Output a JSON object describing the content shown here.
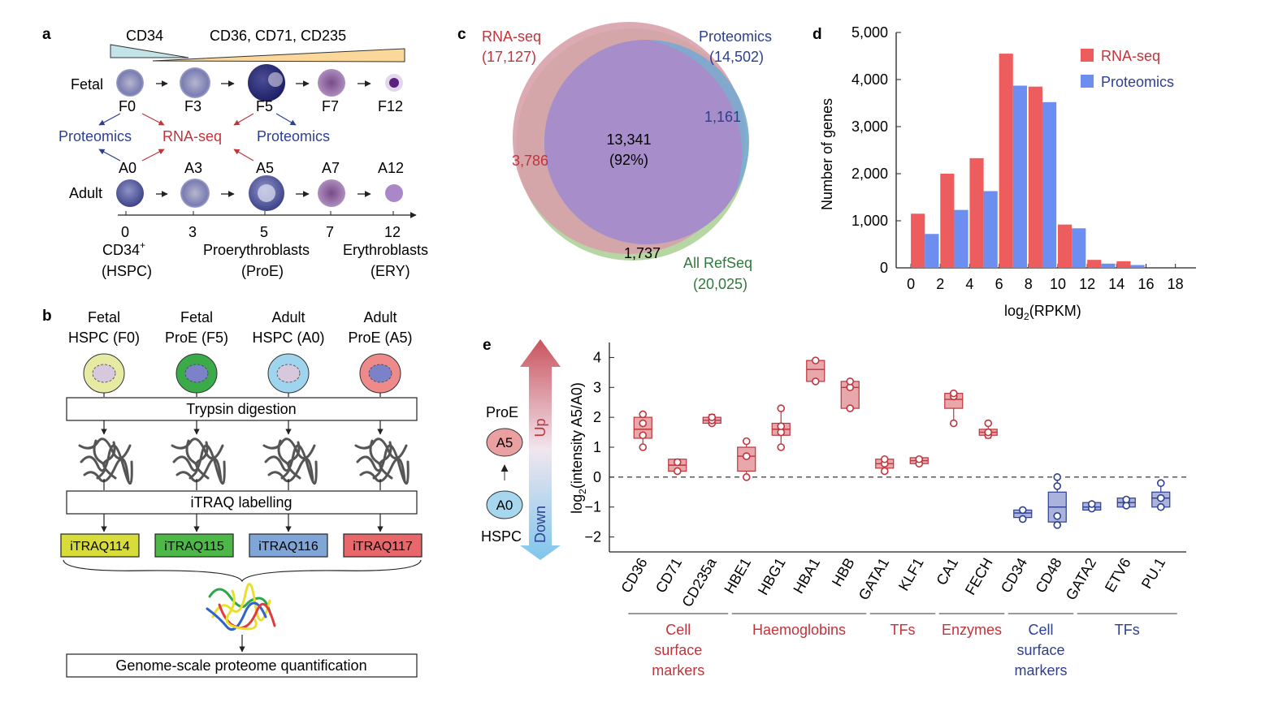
{
  "panel_a": {
    "label": "a",
    "marker_left": "CD34",
    "marker_right": "CD36, CD71, CD235",
    "fetal_label": "Fetal",
    "adult_label": "Adult",
    "fetal_cells": [
      "F0",
      "F3",
      "F5",
      "F7",
      "F12"
    ],
    "adult_cells": [
      "A0",
      "A3",
      "A5",
      "A7",
      "A12"
    ],
    "proteomics_left": "Proteomics",
    "rnaseq": "RNA-seq",
    "proteomics_right": "Proteomics",
    "axis_ticks": [
      "0",
      "3",
      "5",
      "7",
      "12"
    ],
    "stage_hspc_line1": "CD34",
    "stage_hspc_sup": "+",
    "stage_hspc_line2": "(HSPC)",
    "stage_proe_line1": "Proerythroblasts",
    "stage_proe_line2": "(ProE)",
    "stage_ery_line1": "Erythroblasts",
    "stage_ery_line2": "(ERY)"
  },
  "panel_b": {
    "label": "b",
    "samples": [
      {
        "line1": "Fetal",
        "line2": "HSPC (F0)",
        "fill": "#e6eaa2",
        "nucleus": "#d8c8de"
      },
      {
        "line1": "Fetal",
        "line2": "ProE (F5)",
        "fill": "#3bab4a",
        "nucleus": "#7b82c8"
      },
      {
        "line1": "Adult",
        "line2": "HSPC (A0)",
        "fill": "#9fd4ee",
        "nucleus": "#d8c8de"
      },
      {
        "line1": "Adult",
        "line2": "ProE (A5)",
        "fill": "#ef8a8a",
        "nucleus": "#7b82c8"
      }
    ],
    "step1": "Trypsin digestion",
    "step2": "iTRAQ labelling",
    "tags": [
      {
        "label": "iTRAQ114",
        "color": "#d8dc3a"
      },
      {
        "label": "iTRAQ115",
        "color": "#4db847"
      },
      {
        "label": "iTRAQ116",
        "color": "#80a6d8"
      },
      {
        "label": "iTRAQ117",
        "color": "#e8676a"
      }
    ],
    "step3": "Genome-scale proteome quantification"
  },
  "panel_c": {
    "label": "c",
    "rnaseq_label": "RNA-seq",
    "rnaseq_count": "(17,127)",
    "proteomics_label": "Proteomics",
    "proteomics_count": "(14,502)",
    "overlap_value": "13,341",
    "overlap_pct": "(92%)",
    "rna_only": "3,786",
    "prot_only": "1,161",
    "refseq_only": "1,737",
    "refseq_label": "All RefSeq",
    "refseq_count": "(20,025)"
  },
  "chart_data": [
    {
      "type": "bar",
      "panel": "d",
      "xlabel": "log2(RPKM)",
      "xlabel_main": "log",
      "xlabel_sub": "2",
      "xlabel_tail": "(RPKM)",
      "ylabel": "Number of genes",
      "ylim": [
        0,
        5000
      ],
      "yticks": [
        "0",
        "1,000",
        "2,000",
        "3,000",
        "4,000",
        "5,000"
      ],
      "xticks": [
        "0",
        "2",
        "4",
        "6",
        "8",
        "10",
        "12",
        "14",
        "16",
        "18"
      ],
      "bin_starts": [
        0,
        2,
        4,
        6,
        8,
        10,
        12,
        14
      ],
      "series": [
        {
          "name": "RNA-seq",
          "color": "#ee5d5d",
          "values": [
            1150,
            2000,
            2330,
            4550,
            3850,
            920,
            170,
            140
          ]
        },
        {
          "name": "Proteomics",
          "color": "#6b8ef0",
          "values": [
            720,
            1230,
            1630,
            3870,
            3520,
            840,
            90,
            60
          ]
        }
      ],
      "legend": "top-right"
    },
    {
      "type": "box",
      "panel": "e",
      "ylabel": "log2(intensity A5/A0)",
      "ylabel_main": "log",
      "ylabel_sub": "2",
      "ylabel_tail": "(intensity A5/A0)",
      "ylim": [
        -2.5,
        4.5
      ],
      "yticks": [
        "−2",
        "−1",
        "0",
        "1",
        "2",
        "3",
        "4"
      ],
      "categories": [
        "CD36",
        "CD71",
        "CD235a",
        "HBE1",
        "HBG1",
        "HBA1",
        "HBB",
        "GATA1",
        "KLF1",
        "CA1",
        "FECH",
        "CD34",
        "CD48",
        "GATA2",
        "ETV6",
        "PU.1"
      ],
      "boxes": [
        {
          "min": 1.0,
          "q1": 1.3,
          "median": 1.6,
          "q3": 2.0,
          "max": 2.1,
          "points": [
            1.0,
            1.4,
            1.8,
            2.1
          ],
          "group": "up"
        },
        {
          "min": 0.2,
          "q1": 0.2,
          "median": 0.4,
          "q3": 0.6,
          "max": 0.6,
          "points": [
            0.2,
            0.5
          ],
          "group": "up"
        },
        {
          "min": 1.8,
          "q1": 1.8,
          "median": 1.9,
          "q3": 2.0,
          "max": 2.1,
          "points": [
            1.8,
            1.9,
            2.0
          ],
          "group": "up"
        },
        {
          "min": 0.0,
          "q1": 0.2,
          "median": 0.7,
          "q3": 1.0,
          "max": 1.2,
          "points": [
            0.0,
            0.7,
            1.2
          ],
          "group": "up"
        },
        {
          "min": 1.0,
          "q1": 1.4,
          "median": 1.6,
          "q3": 1.8,
          "max": 2.3,
          "points": [
            1.0,
            1.5,
            1.7,
            2.3
          ],
          "group": "up"
        },
        {
          "min": 3.2,
          "q1": 3.2,
          "median": 3.6,
          "q3": 3.9,
          "max": 3.9,
          "points": [
            3.2,
            3.9
          ],
          "group": "up"
        },
        {
          "min": 2.3,
          "q1": 2.3,
          "median": 3.0,
          "q3": 3.2,
          "max": 3.2,
          "points": [
            2.3,
            3.0,
            3.2
          ],
          "group": "up"
        },
        {
          "min": 0.2,
          "q1": 0.3,
          "median": 0.45,
          "q3": 0.6,
          "max": 0.6,
          "points": [
            0.2,
            0.45,
            0.6
          ],
          "group": "up"
        },
        {
          "min": 0.4,
          "q1": 0.45,
          "median": 0.55,
          "q3": 0.65,
          "max": 0.65,
          "points": [
            0.45,
            0.6
          ],
          "group": "up"
        },
        {
          "min": 1.8,
          "q1": 2.3,
          "median": 2.6,
          "q3": 2.8,
          "max": 2.8,
          "points": [
            1.8,
            2.7,
            2.8
          ],
          "group": "up"
        },
        {
          "min": 1.3,
          "q1": 1.4,
          "median": 1.5,
          "q3": 1.6,
          "max": 1.8,
          "points": [
            1.4,
            1.5,
            1.8
          ],
          "group": "up"
        },
        {
          "min": -1.4,
          "q1": -1.35,
          "median": -1.2,
          "q3": -1.1,
          "max": -1.1,
          "points": [
            -1.4,
            -1.1
          ],
          "group": "down"
        },
        {
          "min": -1.6,
          "q1": -1.5,
          "median": -1.0,
          "q3": -0.5,
          "max": 0.0,
          "points": [
            -1.6,
            -1.3,
            -0.3,
            0.0
          ],
          "group": "down"
        },
        {
          "min": -1.1,
          "q1": -1.1,
          "median": -1.0,
          "q3": -0.85,
          "max": -0.85,
          "points": [
            -1.05,
            -0.9
          ],
          "group": "down"
        },
        {
          "min": -1.0,
          "q1": -1.0,
          "median": -0.85,
          "q3": -0.7,
          "max": -0.7,
          "points": [
            -0.95,
            -0.75
          ],
          "group": "down"
        },
        {
          "min": -1.0,
          "q1": -1.0,
          "median": -0.7,
          "q3": -0.5,
          "max": -0.2,
          "points": [
            -1.0,
            -0.7,
            -0.2
          ],
          "group": "down"
        }
      ],
      "groups": [
        {
          "label_lines": [
            "Cell",
            "surface",
            "markers"
          ],
          "from": 0,
          "to": 2,
          "color": "#c0343c"
        },
        {
          "label_lines": [
            "Haemoglobins"
          ],
          "from": 3,
          "to": 6,
          "color": "#c0343c"
        },
        {
          "label_lines": [
            "TFs"
          ],
          "from": 7,
          "to": 8,
          "color": "#c0343c"
        },
        {
          "label_lines": [
            "Enzymes"
          ],
          "from": 9,
          "to": 10,
          "color": "#c0343c"
        },
        {
          "label_lines": [
            "Cell",
            "surface",
            "markers"
          ],
          "from": 11,
          "to": 12,
          "color": "#2e3f8f"
        },
        {
          "label_lines": [
            "TFs"
          ],
          "from": 13,
          "to": 15,
          "color": "#2e3f8f"
        }
      ]
    }
  ],
  "panel_e": {
    "label": "e",
    "proe_label": "ProE",
    "a5": "A5",
    "a0": "A0",
    "hspc_label": "HSPC",
    "up_label": "Up",
    "down_label": "Down"
  },
  "panel_d": {
    "label": "d"
  }
}
